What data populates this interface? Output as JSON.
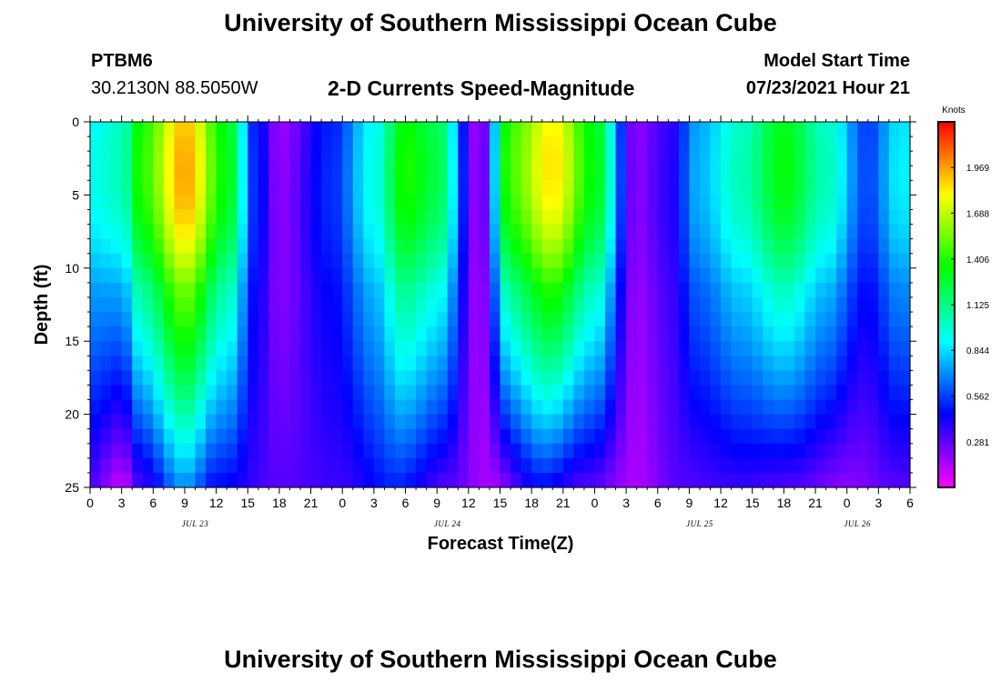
{
  "page": {
    "title_top": "University of Southern Mississippi Ocean Cube",
    "title_bottom": "University of Southern Mississippi Ocean Cube",
    "station_name": "PTBM6",
    "station_coords": "30.2130N  88.5050W",
    "chart_subtitle": "2-D Currents Speed-Magnitude",
    "model_start_label": "Model Start Time",
    "model_start_value": "07/23/2021 Hour 21"
  },
  "chart_data": {
    "type": "heatmap",
    "title": "2-D Currents Speed-Magnitude",
    "xlabel": "Forecast Time(Z)",
    "ylabel": "Depth (ft)",
    "colorbar_label": "Knots",
    "x_tick_labels": [
      "0",
      "3",
      "6",
      "9",
      "12",
      "15",
      "18",
      "21",
      "0",
      "3",
      "6",
      "9",
      "12",
      "15",
      "18",
      "21",
      "0",
      "3",
      "6",
      "9",
      "12",
      "15",
      "18",
      "21",
      "0",
      "3",
      "6"
    ],
    "x_range_hours_from_jul23_00z": [
      0,
      78
    ],
    "date_labels": [
      {
        "label": "JUL 23",
        "hour": 10
      },
      {
        "label": "JUL 24",
        "hour": 34
      },
      {
        "label": "JUL 25",
        "hour": 58
      },
      {
        "label": "JUL 26",
        "hour": 73
      }
    ],
    "y_ticks": [
      0,
      5,
      10,
      15,
      20,
      25
    ],
    "y_range": [
      0,
      25
    ],
    "y_inverted": true,
    "colorbar_ticks": [
      1.969,
      1.688,
      1.406,
      1.125,
      0.844,
      0.562,
      0.281
    ],
    "colorbar_range": [
      0,
      2.25
    ],
    "grid": false,
    "surface_profile_knots_by_hour": [
      {
        "hour": 0,
        "value": 0.9
      },
      {
        "hour": 3,
        "value": 1.0
      },
      {
        "hour": 5,
        "value": 1.4
      },
      {
        "hour": 9,
        "value": 1.9
      },
      {
        "hour": 13,
        "value": 1.3
      },
      {
        "hour": 16,
        "value": 0.45
      },
      {
        "hour": 18,
        "value": 0.18
      },
      {
        "hour": 23,
        "value": 0.5
      },
      {
        "hour": 27,
        "value": 0.9
      },
      {
        "hour": 30,
        "value": 1.35
      },
      {
        "hour": 33,
        "value": 1.2
      },
      {
        "hour": 37,
        "value": 0.15
      },
      {
        "hour": 40,
        "value": 1.45
      },
      {
        "hour": 44,
        "value": 1.8
      },
      {
        "hour": 48,
        "value": 1.3
      },
      {
        "hour": 52,
        "value": 0.2
      },
      {
        "hour": 55,
        "value": 0.35
      },
      {
        "hour": 58,
        "value": 0.75
      },
      {
        "hour": 62,
        "value": 1.0
      },
      {
        "hour": 66,
        "value": 1.3
      },
      {
        "hour": 70,
        "value": 1.0
      },
      {
        "hour": 74,
        "value": 0.55
      },
      {
        "hour": 77,
        "value": 0.85
      }
    ],
    "bottom_profile_knots_by_hour": [
      {
        "hour": 0,
        "value": 0.3
      },
      {
        "hour": 3,
        "value": 0.1
      },
      {
        "hour": 5,
        "value": 0.35
      },
      {
        "hour": 9,
        "value": 0.7
      },
      {
        "hour": 12,
        "value": 0.45
      },
      {
        "hour": 18,
        "value": 0.3
      },
      {
        "hour": 24,
        "value": 0.35
      },
      {
        "hour": 29,
        "value": 0.5
      },
      {
        "hour": 34,
        "value": 0.3
      },
      {
        "hour": 38,
        "value": 0.15
      },
      {
        "hour": 43,
        "value": 0.45
      },
      {
        "hour": 47,
        "value": 0.3
      },
      {
        "hour": 52,
        "value": 0.15
      },
      {
        "hour": 56,
        "value": 0.3
      },
      {
        "hour": 62,
        "value": 0.35
      },
      {
        "hour": 67,
        "value": 0.3
      },
      {
        "hour": 72,
        "value": 0.2
      },
      {
        "hour": 77,
        "value": 0.3
      }
    ]
  }
}
